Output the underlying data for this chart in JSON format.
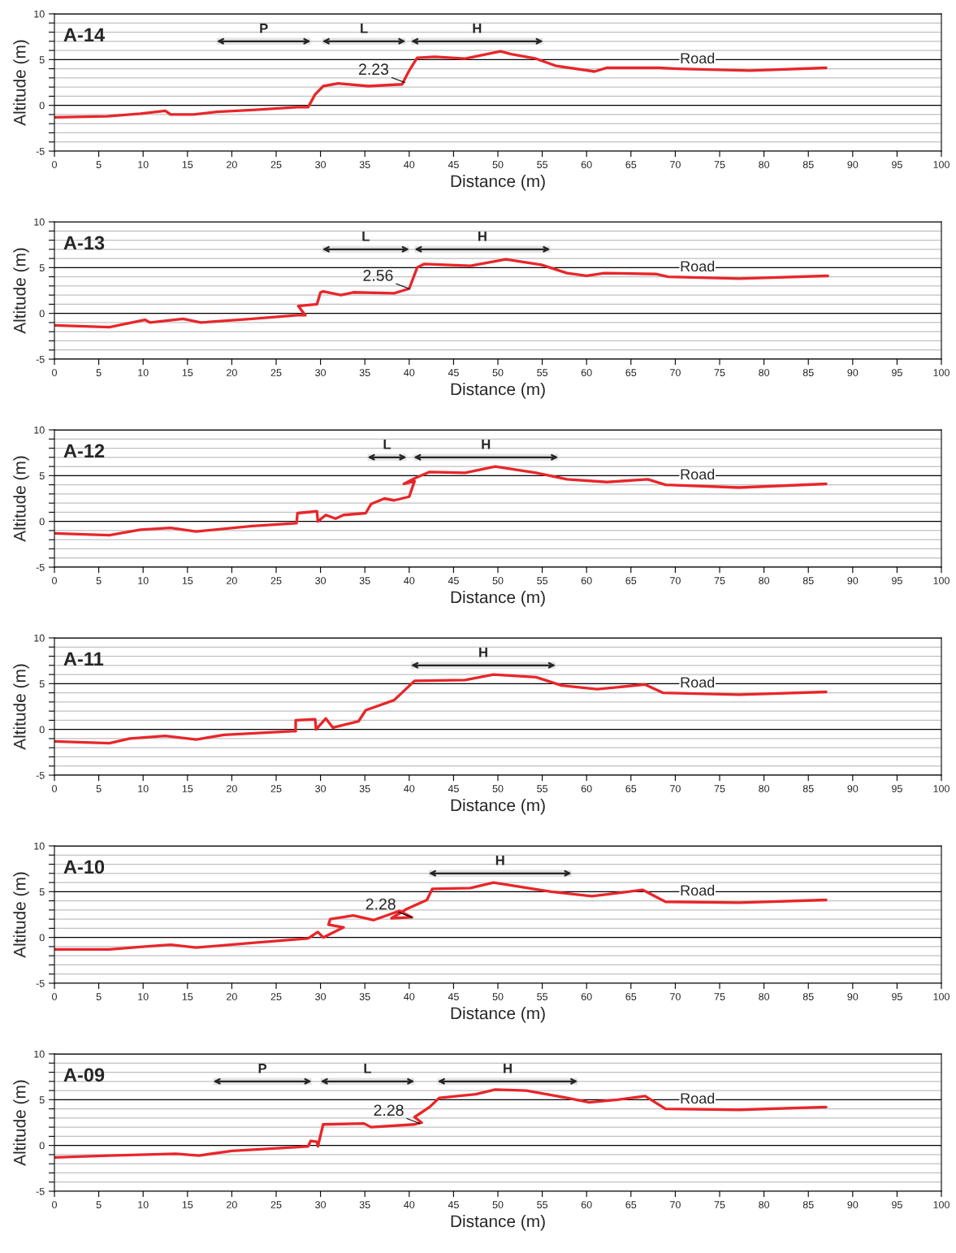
{
  "chart_data": [
    {
      "type": "line",
      "title": "A-14",
      "xlabel": "Distance (m)",
      "ylabel": "Altitude (m)",
      "xlim": [
        0,
        100
      ],
      "ylim": [
        -5,
        10
      ],
      "xticks": [
        0,
        5,
        10,
        15,
        20,
        25,
        30,
        35,
        40,
        45,
        50,
        55,
        60,
        65,
        70,
        75,
        80,
        85,
        90,
        95,
        100
      ],
      "yticks": [
        -5,
        {
          "value": -4,
          "label": null
        },
        {
          "value": -3,
          "label": null
        },
        {
          "value": -2,
          "label": null
        },
        {
          "value": -1,
          "label": null
        },
        0,
        {
          "value": 1,
          "label": null
        },
        {
          "value": 2,
          "label": null
        },
        {
          "value": 3,
          "label": null
        },
        {
          "value": 4,
          "label": null
        },
        5,
        {
          "value": 6,
          "label": null
        },
        {
          "value": 7,
          "label": null
        },
        {
          "value": 8,
          "label": null
        },
        {
          "value": 9,
          "label": null
        },
        10
      ],
      "grid": "y",
      "marker": "none",
      "line_style": "solid",
      "bands": [
        {
          "axis": "x",
          "from": 18.3,
          "to": 28.9,
          "label": "P",
          "color": "#262626"
        },
        {
          "axis": "x",
          "from": 30.2,
          "to": 39.6,
          "label": "L",
          "color": "#262626"
        },
        {
          "axis": "x",
          "from": 40.2,
          "to": 55.1,
          "label": "H",
          "color": "#262626"
        }
      ],
      "annotations": [
        {
          "text": "2.23",
          "x": 39.5,
          "y": 2.5
        },
        "Road"
      ],
      "series": [
        {
          "color": "#e8262a",
          "x": [
            0,
            5.95,
            9.7,
            12.5,
            13.1,
            15.7,
            18.3,
            22.3,
            27.4,
            28.6,
            29.4,
            30.3,
            32.0,
            35.4,
            39.2,
            40.0,
            40.9,
            42.9,
            46.3,
            50.3,
            51.5,
            54.3,
            56.6,
            60.9,
            62.3,
            68.1,
            70.3,
            78.4,
            87.0
          ],
          "values": [
            -1.3,
            -1.2,
            -0.9,
            -0.6,
            -1.0,
            -1.0,
            -0.7,
            -0.5,
            -0.2,
            -0.2,
            1.2,
            2.1,
            2.4,
            2.1,
            2.3,
            3.8,
            5.2,
            5.3,
            5.1,
            5.9,
            5.6,
            5.1,
            4.3,
            3.7,
            4.1,
            4.1,
            4.0,
            3.8,
            4.1
          ]
        }
      ]
    },
    {
      "type": "line",
      "title": "A-13",
      "xlabel": "Distance (m)",
      "ylabel": "Altitude (m)",
      "xlim": [
        0,
        100
      ],
      "ylim": [
        -5,
        10
      ],
      "xticks": [
        0,
        5,
        10,
        15,
        20,
        25,
        30,
        35,
        40,
        45,
        50,
        55,
        60,
        65,
        70,
        75,
        80,
        85,
        90,
        95,
        100
      ],
      "yticks": [
        -5,
        {
          "value": -4,
          "label": null
        },
        {
          "value": -3,
          "label": null
        },
        {
          "value": -2,
          "label": null
        },
        {
          "value": -1,
          "label": null
        },
        0,
        {
          "value": 1,
          "label": null
        },
        {
          "value": 2,
          "label": null
        },
        {
          "value": 3,
          "label": null
        },
        {
          "value": 4,
          "label": null
        },
        5,
        {
          "value": 6,
          "label": null
        },
        {
          "value": 7,
          "label": null
        },
        {
          "value": 8,
          "label": null
        },
        {
          "value": 9,
          "label": null
        },
        10
      ],
      "grid": "y",
      "marker": "none",
      "line_style": "solid",
      "bands": [
        {
          "axis": "x",
          "from": 30.2,
          "to": 40.0,
          "label": "L",
          "color": "#262626"
        },
        {
          "axis": "x",
          "from": 40.6,
          "to": 55.9,
          "label": "H",
          "color": "#262626"
        }
      ],
      "annotations": [
        {
          "text": "2.56",
          "x": 40.0,
          "y": 2.7
        },
        "Road"
      ],
      "series": [
        {
          "color": "#e8262a",
          "x": [
            0,
            6.2,
            10.2,
            10.8,
            14.5,
            16.5,
            22.3,
            27.4,
            28.3,
            27.5,
            29.6,
            30.0,
            30.3,
            32.3,
            33.7,
            38.3,
            40.0,
            40.9,
            41.7,
            46.9,
            50.9,
            54.9,
            57.8,
            60.0,
            62.0,
            67.8,
            69.2,
            77.2,
            87.2
          ],
          "values": [
            -1.3,
            -1.5,
            -0.7,
            -1.0,
            -0.6,
            -1.0,
            -0.6,
            -0.2,
            -0.2,
            0.8,
            1.0,
            2.3,
            2.4,
            2.0,
            2.3,
            2.2,
            2.7,
            5.0,
            5.4,
            5.2,
            5.9,
            5.3,
            4.4,
            4.1,
            4.4,
            4.3,
            4.0,
            3.8,
            4.1
          ]
        }
      ]
    },
    {
      "type": "line",
      "title": "A-12",
      "xlabel": "Distance (m)",
      "ylabel": "Altitude (m)",
      "xlim": [
        0,
        100
      ],
      "ylim": [
        -5,
        10
      ],
      "xticks": [
        0,
        5,
        10,
        15,
        20,
        25,
        30,
        35,
        40,
        45,
        50,
        55,
        60,
        65,
        70,
        75,
        80,
        85,
        90,
        95,
        100
      ],
      "yticks": [
        -5,
        {
          "value": -4,
          "label": null
        },
        {
          "value": -3,
          "label": null
        },
        {
          "value": -2,
          "label": null
        },
        {
          "value": -1,
          "label": null
        },
        0,
        {
          "value": 1,
          "label": null
        },
        {
          "value": 2,
          "label": null
        },
        {
          "value": 3,
          "label": null
        },
        {
          "value": 4,
          "label": null
        },
        5,
        {
          "value": 6,
          "label": null
        },
        {
          "value": 7,
          "label": null
        },
        {
          "value": 8,
          "label": null
        },
        {
          "value": 9,
          "label": null
        },
        10
      ],
      "grid": "y",
      "marker": "none",
      "line_style": "solid",
      "bands": [
        {
          "axis": "x",
          "from": 35.3,
          "to": 39.7,
          "label": "L",
          "color": "#262626"
        },
        {
          "axis": "x",
          "from": 40.5,
          "to": 56.8,
          "label": "H",
          "color": "#262626"
        }
      ],
      "annotations": [
        "Road"
      ],
      "series": [
        {
          "color": "#e8262a",
          "x": [
            0,
            6.2,
            9.7,
            13.1,
            16.0,
            22.3,
            27.3,
            27.4,
            29.6,
            29.7,
            30.6,
            31.7,
            32.6,
            35.1,
            35.7,
            37.2,
            38.3,
            40.0,
            40.6,
            39.4,
            40.6,
            42.3,
            46.3,
            49.7,
            54.3,
            57.8,
            62.3,
            66.9,
            68.9,
            77.2,
            87.0
          ],
          "values": [
            -1.3,
            -1.5,
            -0.9,
            -0.7,
            -1.1,
            -0.5,
            -0.2,
            0.9,
            1.1,
            0,
            0.7,
            0.3,
            0.7,
            0.9,
            1.9,
            2.5,
            2.3,
            2.7,
            4.4,
            4.1,
            4.7,
            5.4,
            5.3,
            6.0,
            5.3,
            4.6,
            4.3,
            4.6,
            4.0,
            3.7,
            4.1
          ]
        }
      ]
    },
    {
      "type": "line",
      "title": "A-11",
      "xlabel": "Distance (m)",
      "ylabel": "Altitude (m)",
      "xlim": [
        0,
        100
      ],
      "ylim": [
        -5,
        10
      ],
      "xticks": [
        0,
        5,
        10,
        15,
        20,
        25,
        30,
        35,
        40,
        45,
        50,
        55,
        60,
        65,
        70,
        75,
        80,
        85,
        90,
        95,
        100
      ],
      "yticks": [
        -5,
        {
          "value": -4,
          "label": null
        },
        {
          "value": -3,
          "label": null
        },
        {
          "value": -2,
          "label": null
        },
        {
          "value": -1,
          "label": null
        },
        0,
        {
          "value": 1,
          "label": null
        },
        {
          "value": 2,
          "label": null
        },
        {
          "value": 3,
          "label": null
        },
        {
          "value": 4,
          "label": null
        },
        5,
        {
          "value": 6,
          "label": null
        },
        {
          "value": 7,
          "label": null
        },
        {
          "value": 8,
          "label": null
        },
        {
          "value": 9,
          "label": null
        },
        10
      ],
      "grid": "y",
      "marker": "none",
      "line_style": "solid",
      "bands": [
        {
          "axis": "x",
          "from": 40.2,
          "to": 56.5,
          "label": "H",
          "color": "#262626"
        }
      ],
      "annotations": [
        "Road"
      ],
      "series": [
        {
          "color": "#e8262a",
          "x": [
            0,
            6.2,
            8.5,
            12.5,
            16.0,
            19.1,
            26.8,
            27.2,
            27.2,
            29.4,
            29.5,
            30.6,
            31.4,
            34.3,
            35.1,
            38.3,
            40.6,
            46.3,
            49.5,
            54.3,
            57.2,
            61.2,
            66.6,
            68.6,
            77.2,
            87.0
          ],
          "values": [
            -1.3,
            -1.5,
            -1.0,
            -0.7,
            -1.1,
            -0.6,
            -0.2,
            -0.2,
            1.0,
            1.1,
            0,
            1.2,
            0.2,
            0.9,
            2.1,
            3.2,
            5.3,
            5.4,
            6.0,
            5.7,
            4.8,
            4.4,
            4.9,
            4.0,
            3.8,
            4.1
          ]
        }
      ]
    },
    {
      "type": "line",
      "title": "A-10",
      "xlabel": "Distance (m)",
      "ylabel": "Altitude (m)",
      "xlim": [
        0,
        100
      ],
      "ylim": [
        -5,
        10
      ],
      "xticks": [
        0,
        5,
        10,
        15,
        20,
        25,
        30,
        35,
        40,
        45,
        50,
        55,
        60,
        65,
        70,
        75,
        80,
        85,
        90,
        95,
        100
      ],
      "yticks": [
        -5,
        {
          "value": -4,
          "label": null
        },
        {
          "value": -3,
          "label": null
        },
        {
          "value": -2,
          "label": null
        },
        {
          "value": -1,
          "label": null
        },
        0,
        {
          "value": 1,
          "label": null
        },
        {
          "value": 2,
          "label": null
        },
        {
          "value": 3,
          "label": null
        },
        {
          "value": 4,
          "label": null
        },
        5,
        {
          "value": 6,
          "label": null
        },
        {
          "value": 7,
          "label": null
        },
        {
          "value": 8,
          "label": null
        },
        {
          "value": 9,
          "label": null
        },
        10
      ],
      "grid": "y",
      "marker": "none",
      "line_style": "solid",
      "bands": [
        {
          "axis": "x",
          "from": 42.2,
          "to": 58.3,
          "label": "H",
          "color": "#262626"
        }
      ],
      "annotations": [
        {
          "text": "2.28",
          "x": 40.3,
          "y": 2.2
        },
        "Road"
      ],
      "series": [
        {
          "color": "#e8262a",
          "x": [
            0,
            6.2,
            10.2,
            13.1,
            16.0,
            22.3,
            28.6,
            29.7,
            30.3,
            32.6,
            30.9,
            31.1,
            33.7,
            36.0,
            38.9,
            40.3,
            38.0,
            39.7,
            42.0,
            42.6,
            46.9,
            49.5,
            56.0,
            60.6,
            62.3,
            66.3,
            68.9,
            77.2,
            87.0
          ],
          "values": [
            -1.3,
            -1.3,
            -1.0,
            -0.8,
            -1.1,
            -0.6,
            -0.1,
            0.6,
            0,
            1.1,
            1.4,
            2.0,
            2.4,
            1.9,
            2.9,
            2.2,
            2.1,
            3.1,
            4.1,
            5.3,
            5.4,
            6.0,
            5.0,
            4.5,
            4.7,
            5.2,
            3.9,
            3.8,
            4.1
          ]
        }
      ]
    },
    {
      "type": "line",
      "title": "A-09",
      "xlabel": "Distance (m)",
      "ylabel": "Altitude (m)",
      "xlim": [
        0,
        100
      ],
      "ylim": [
        -5,
        10
      ],
      "xticks": [
        0,
        5,
        10,
        15,
        20,
        25,
        30,
        35,
        40,
        45,
        50,
        55,
        60,
        65,
        70,
        75,
        80,
        85,
        90,
        95,
        100
      ],
      "yticks": [
        -5,
        {
          "value": -4,
          "label": null
        },
        {
          "value": -3,
          "label": null
        },
        {
          "value": -2,
          "label": null
        },
        {
          "value": -1,
          "label": null
        },
        0,
        {
          "value": 1,
          "label": null
        },
        {
          "value": 2,
          "label": null
        },
        {
          "value": 3,
          "label": null
        },
        {
          "value": 4,
          "label": null
        },
        5,
        {
          "value": 6,
          "label": null
        },
        {
          "value": 7,
          "label": null
        },
        {
          "value": 8,
          "label": null
        },
        {
          "value": 9,
          "label": null
        },
        10
      ],
      "grid": "y",
      "marker": "none",
      "line_style": "solid",
      "bands": [
        {
          "axis": "x",
          "from": 17.9,
          "to": 29.0,
          "label": "P",
          "color": "#262626"
        },
        {
          "axis": "x",
          "from": 30.0,
          "to": 40.6,
          "label": "L",
          "color": "#262626"
        },
        {
          "axis": "x",
          "from": 43.2,
          "to": 59.0,
          "label": "H",
          "color": "#262626"
        }
      ],
      "annotations": [
        {
          "text": "2.28",
          "x": 41.2,
          "y": 2.4
        },
        "Road"
      ],
      "series": [
        {
          "color": "#e8262a",
          "x": [
            0,
            6.2,
            13.7,
            16.3,
            20.0,
            28.6,
            28.9,
            29.6,
            29.7,
            30.3,
            34.9,
            35.7,
            40.6,
            41.4,
            40.6,
            42.3,
            43.4,
            47.5,
            49.7,
            53.2,
            57.8,
            60.3,
            63.5,
            66.6,
            68.9,
            77.2,
            87.0
          ],
          "values": [
            -1.3,
            -1.1,
            -0.9,
            -1.1,
            -0.6,
            -0.1,
            0.5,
            0.4,
            -0.1,
            2.3,
            2.4,
            2.0,
            2.3,
            2.5,
            3.1,
            4.2,
            5.2,
            5.6,
            6.1,
            6.0,
            5.2,
            4.7,
            5.0,
            5.4,
            4.0,
            3.9,
            4.2
          ]
        }
      ]
    }
  ]
}
